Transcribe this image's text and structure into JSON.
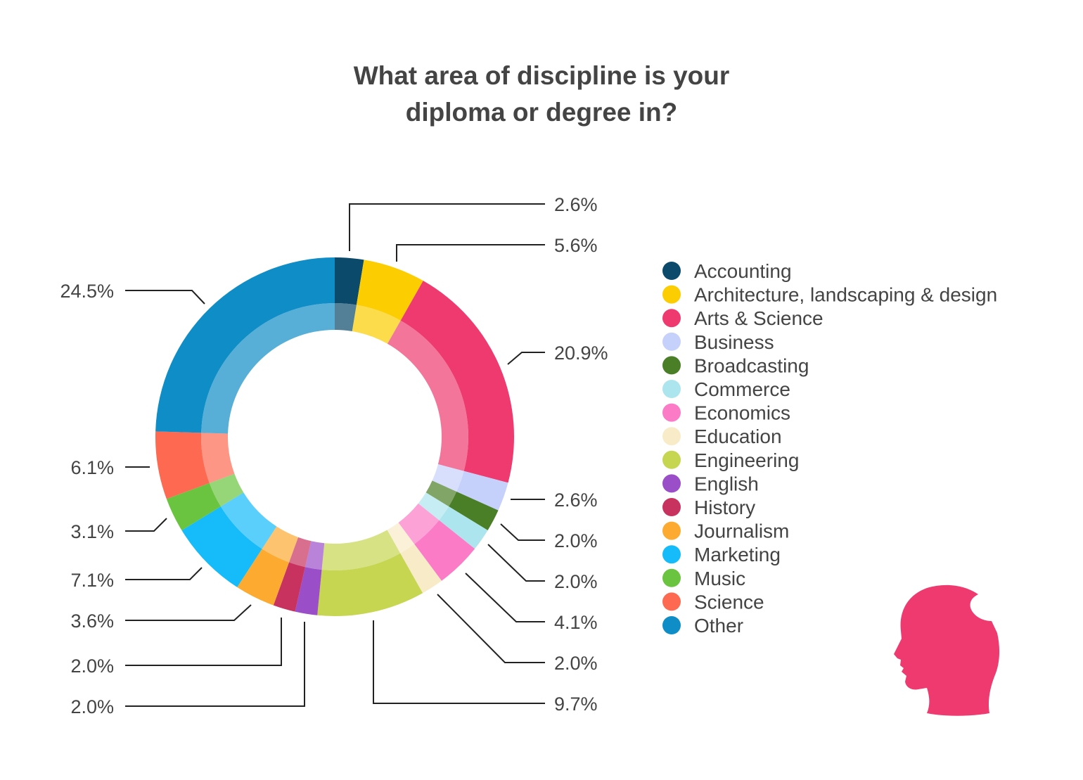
{
  "chart_data": {
    "type": "pie",
    "variant": "donut",
    "title_lines": [
      "What area of discipline is your",
      "diploma or degree in?"
    ],
    "legend_position": "right",
    "categories": [
      "Accounting",
      "Architecture, landscaping & design",
      "Arts & Science",
      "Business",
      "Broadcasting",
      "Commerce",
      "Economics",
      "Education",
      "Engineering",
      "English",
      "History",
      "Journalism",
      "Marketing",
      "Music",
      "Science",
      "Other"
    ],
    "values": [
      2.6,
      5.6,
      20.9,
      2.6,
      2.0,
      2.0,
      4.1,
      2.0,
      9.7,
      2.0,
      2.0,
      3.6,
      7.1,
      3.1,
      6.1,
      24.5
    ],
    "value_labels": [
      "2.6%",
      "5.6%",
      "20.9%",
      "2.6%",
      "2.0%",
      "2.0%",
      "4.1%",
      "2.0%",
      "9.7%",
      "2.0%",
      "2.0%",
      "3.6%",
      "7.1%",
      "3.1%",
      "6.1%",
      "24.5%"
    ],
    "colors": [
      "#0b4a6b",
      "#fccd00",
      "#ee3a6e",
      "#c6d1fb",
      "#4a7f27",
      "#ade5ee",
      "#fc7bc6",
      "#f8ebc8",
      "#c6d651",
      "#9a4ec8",
      "#c8325f",
      "#fdaa31",
      "#16bbfa",
      "#6ac43f",
      "#fd6a51",
      "#0f8dc6"
    ],
    "icon_color": "#ee3a6e"
  },
  "decor": {
    "icon": "head-silhouette-icon"
  }
}
